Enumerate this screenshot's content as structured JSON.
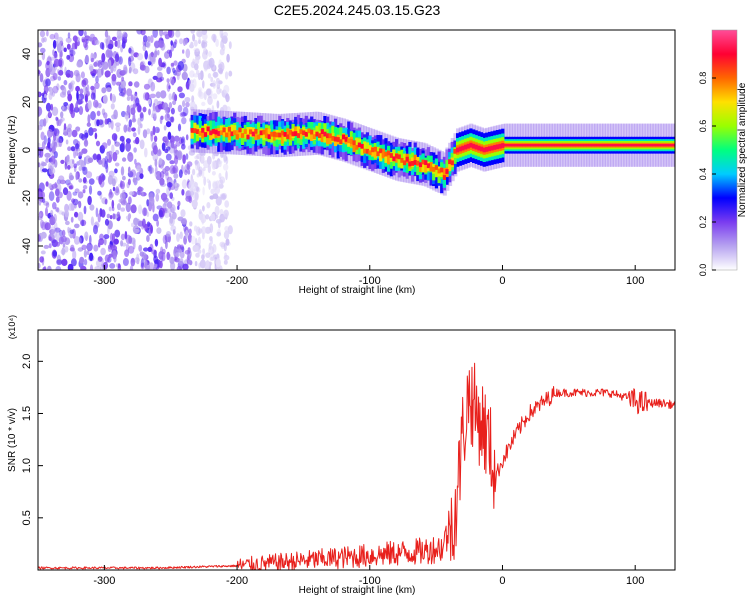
{
  "title": "C2E5.2024.245.03.15.G23",
  "chart_data": [
    {
      "type": "heatmap",
      "xlabel": "Height of straight line (km)",
      "ylabel": "Frequency (Hz)",
      "xlim": [
        -350,
        130
      ],
      "ylim": [
        -50,
        50
      ],
      "x_ticks": [
        -300,
        -200,
        -100,
        0,
        100
      ],
      "y_ticks": [
        -40,
        -20,
        0,
        20,
        40
      ],
      "colorbar": {
        "label": "Normalized spectral amplitude",
        "range": [
          0,
          1
        ],
        "ticks": [
          0.0,
          0.2,
          0.4,
          0.6,
          0.8
        ],
        "tick_labels": [
          "0.0",
          "0.2",
          "0.4",
          "0.6",
          "0.8"
        ],
        "colors": [
          "#ffffff",
          "#b7a3f0",
          "#7a3cf0",
          "#0000ff",
          "#00ccff",
          "#00ff7f",
          "#9aff00",
          "#ffe000",
          "#ff6600",
          "#ff0033",
          "#ff4d99"
        ]
      },
      "ridge": {
        "x": [
          -235,
          -200,
          -170,
          -140,
          -120,
          -100,
          -80,
          -60,
          -45,
          -35,
          -25,
          -15,
          0,
          50,
          80,
          100,
          130
        ],
        "y": [
          8,
          7,
          6,
          7,
          4,
          0,
          -4,
          -6,
          -10,
          0,
          2,
          0,
          2,
          2,
          2,
          2,
          2
        ]
      },
      "noise_region_xlim": [
        -350,
        -235
      ],
      "grid": false
    },
    {
      "type": "line",
      "xlabel": "Height of straight line (km)",
      "ylabel": "SNR (10 * v/v)",
      "y_multiplier": "(x10⁴)",
      "xlim": [
        -350,
        130
      ],
      "ylim": [
        0,
        2.3
      ],
      "x_ticks": [
        -300,
        -200,
        -100,
        0,
        100
      ],
      "y_ticks": [
        0.5,
        1.0,
        1.5,
        2.0
      ],
      "y_tick_labels": [
        "0.5",
        "1.0",
        "1.5",
        "2.0"
      ],
      "series": [
        {
          "color": "#e8201c",
          "x": [
            -350,
            -300,
            -260,
            -230,
            -200,
            -180,
            -160,
            -140,
            -120,
            -100,
            -80,
            -60,
            -45,
            -35,
            -30,
            -25,
            -20,
            -15,
            -10,
            -5,
            0,
            10,
            20,
            30,
            40,
            60,
            80,
            95,
            100,
            105,
            110,
            120,
            130
          ],
          "y": [
            0.02,
            0.02,
            0.02,
            0.03,
            0.04,
            0.06,
            0.08,
            0.1,
            0.12,
            0.14,
            0.16,
            0.18,
            0.22,
            0.6,
            1.3,
            1.7,
            1.5,
            1.4,
            1.2,
            0.9,
            1.05,
            1.3,
            1.5,
            1.6,
            1.7,
            1.7,
            1.7,
            1.65,
            1.62,
            1.6,
            1.6,
            1.6,
            1.58
          ]
        }
      ],
      "grid": false
    }
  ]
}
